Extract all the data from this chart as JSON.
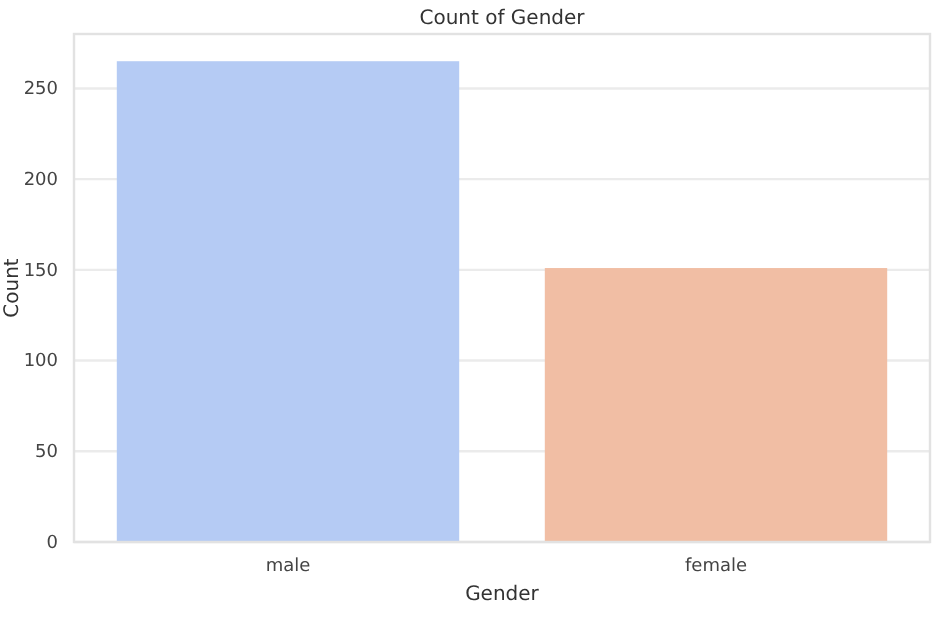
{
  "chart_data": {
    "type": "bar",
    "title": "Count of Gender",
    "xlabel": "Gender",
    "ylabel": "Count",
    "categories": [
      "male",
      "female"
    ],
    "values": [
      265,
      151
    ],
    "colors": [
      "#b5cbf4",
      "#f1bea4"
    ],
    "ylim": [
      0,
      280
    ],
    "yticks": [
      0,
      50,
      100,
      150,
      200,
      250
    ],
    "grid": "y"
  }
}
